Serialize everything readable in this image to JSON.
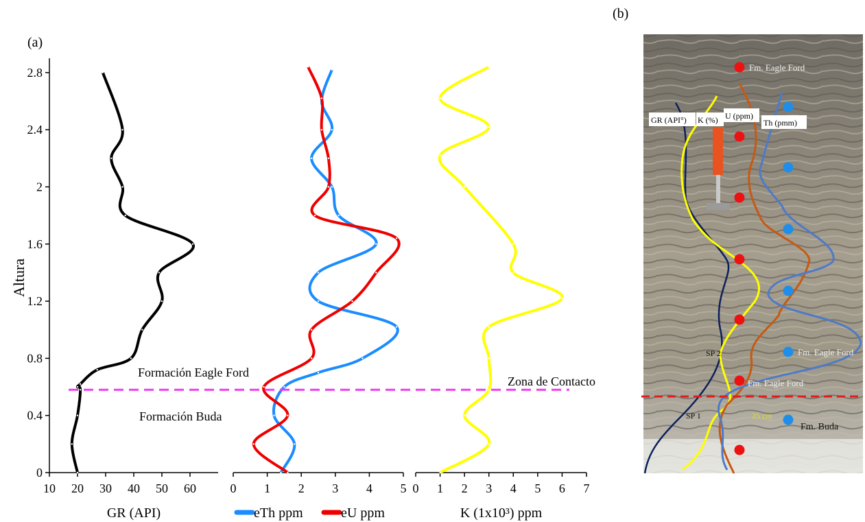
{
  "panel_a_label": "(a)",
  "panel_b_label": "(b)",
  "chart_data": [
    {
      "type": "line",
      "panel": "GR",
      "xlabel": "GR (API)",
      "ylabel": "Altura",
      "xlim": [
        10,
        70
      ],
      "ylim": [
        0,
        2.9
      ],
      "xticks": [
        10,
        20,
        30,
        40,
        50,
        60
      ],
      "yticks": [
        0,
        0.4,
        0.8,
        1.2,
        1.6,
        2.0,
        2.4,
        2.8
      ],
      "ytick_labels": [
        "0",
        "0.4",
        "0.8",
        "1.2",
        "1.6",
        "2",
        "2.4",
        "2.8"
      ],
      "series": [
        {
          "name": "",
          "color": "#000000",
          "x": [
            20,
            18,
            20,
            21,
            20,
            21,
            27,
            39,
            43,
            50,
            49,
            61,
            37,
            36,
            32,
            36,
            29
          ],
          "y": [
            0,
            0.2,
            0.4,
            0.58,
            0.6,
            0.62,
            0.72,
            0.8,
            1.0,
            1.2,
            1.4,
            1.6,
            1.8,
            2.0,
            2.2,
            2.4,
            2.8
          ]
        }
      ]
    },
    {
      "type": "line",
      "panel": "ThU",
      "xlabel": "",
      "xlim": [
        0,
        5
      ],
      "ylim": [
        0,
        2.9
      ],
      "xticks": [
        0,
        1,
        2,
        3,
        4,
        5
      ],
      "legend": [
        {
          "name": "eTh ppm",
          "color": "#1a8cff"
        },
        {
          "name": "eU ppm",
          "color": "#ee0000"
        }
      ],
      "series": [
        {
          "name": "eTh ppm",
          "color": "#1a8cff",
          "x": [
            1.4,
            1.8,
            1.2,
            1.5,
            2.5,
            3.8,
            4.8,
            2.5,
            2.5,
            4.2,
            3.1,
            2.9,
            2.3,
            2.9,
            2.6,
            2.9
          ],
          "y": [
            0,
            0.2,
            0.4,
            0.6,
            0.7,
            0.8,
            1.02,
            1.2,
            1.4,
            1.6,
            1.8,
            2.0,
            2.2,
            2.4,
            2.6,
            2.82
          ]
        },
        {
          "name": "eU ppm",
          "color": "#ee0000",
          "x": [
            1.6,
            0.6,
            1.6,
            0.9,
            2.3,
            2.3,
            3.5,
            4.2,
            4.8,
            2.4,
            2.8,
            2.8,
            2.6,
            2.6,
            2.2
          ],
          "y": [
            0,
            0.2,
            0.4,
            0.6,
            0.8,
            1.0,
            1.2,
            1.4,
            1.64,
            1.8,
            2.0,
            2.2,
            2.4,
            2.62,
            2.84
          ]
        }
      ]
    },
    {
      "type": "line",
      "panel": "K",
      "xlabel": "K (1x10³) ppm",
      "xlim": [
        0,
        7
      ],
      "ylim": [
        0,
        2.9
      ],
      "xticks": [
        0,
        1,
        2,
        3,
        4,
        5,
        6,
        7
      ],
      "series": [
        {
          "name": "",
          "color": "#ffff00",
          "x": [
            1,
            3,
            2,
            3,
            3,
            3,
            6,
            4,
            4,
            2,
            1,
            3,
            1,
            3
          ],
          "y": [
            0,
            0.2,
            0.4,
            0.58,
            0.8,
            1.02,
            1.22,
            1.4,
            1.6,
            2.0,
            2.22,
            2.42,
            2.62,
            2.84
          ]
        }
      ]
    }
  ],
  "annotations": {
    "upper_formation": "Formación Eagle Ford",
    "lower_formation": "Formación Buda",
    "contact": "Zona de Contacto",
    "contact_height": 0.58
  },
  "photo": {
    "labels": {
      "gr": "GR (API°)",
      "k": "K (%)",
      "u": "U (ppm)",
      "th": "Th (pmm)",
      "eagle_top": "Fm. Eagle Ford",
      "eagle_right": "Fm. Eagle Ford",
      "eagle_low": "Fm. Eagle Ford",
      "buda": "Fm. Buda",
      "sp2": "SP 2",
      "sp1": "SP 1",
      "thickness": "25 cm"
    }
  }
}
